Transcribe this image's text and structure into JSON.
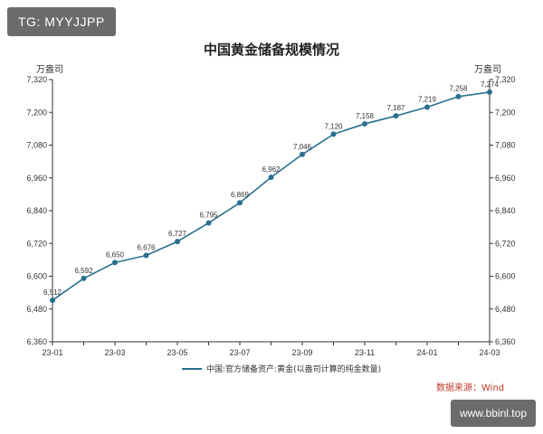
{
  "watermarks": {
    "top_left": "TG: MYYJJPP",
    "bottom_right": "www.bbinl.top"
  },
  "source": "数据来源：Wind",
  "colors": {
    "line": "#2a6f8f",
    "axis": "#333333",
    "source": "#c0392b"
  },
  "chart_data": {
    "type": "line",
    "title": "中国黄金储备规模情况",
    "ylabel_left": "万盎司",
    "ylabel_right": "万盎司",
    "ylim": [
      6360,
      7320
    ],
    "yticks": [
      6360,
      6480,
      6600,
      6720,
      6840,
      6960,
      7080,
      7200,
      7320
    ],
    "ytick_labels": [
      "6,360",
      "6,480",
      "6,600",
      "6,720",
      "6,840",
      "6,960",
      "7,080",
      "7,200",
      "7,320"
    ],
    "x": [
      "23-01",
      "23-02",
      "23-03",
      "23-04",
      "23-05",
      "23-06",
      "23-07",
      "23-08",
      "23-09",
      "23-10",
      "23-11",
      "23-12",
      "24-01",
      "24-02",
      "24-03"
    ],
    "xtick_labels": [
      "23-01",
      "23-03",
      "23-05",
      "23-07",
      "23-09",
      "23-11",
      "24-01",
      "24-03"
    ],
    "series": [
      {
        "name": "中国:官方储备资产:黄金(以盎司计算的纯金数量)",
        "values": [
          6512,
          6592,
          6650,
          6676,
          6727,
          6795,
          6869,
          6962,
          7046,
          7120,
          7158,
          7187,
          7219,
          7258,
          7274
        ],
        "labels": [
          "6,512",
          "6,592",
          "6,650",
          "6,676",
          "6,727",
          "6,795",
          "6,869",
          "6,962",
          "7,046",
          "7,120",
          "7,158",
          "7,187",
          "7,219",
          "7,258",
          "7,274"
        ]
      }
    ],
    "legend_position": "bottom-center",
    "grid": false
  }
}
